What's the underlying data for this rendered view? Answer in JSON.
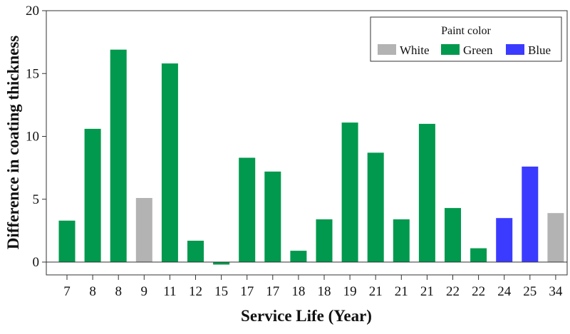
{
  "chart_data": {
    "type": "bar",
    "xlabel": "Service Life (Year)",
    "ylabel": "Difference in coating thickness",
    "ylim": [
      0,
      20
    ],
    "yticks": [
      0,
      5,
      10,
      15,
      20
    ],
    "grid": false,
    "legend": {
      "title": "Paint color",
      "placement": "top-right",
      "entries": [
        {
          "label": "White",
          "color": "#b3b3b3"
        },
        {
          "label": "Green",
          "color": "#00994d"
        },
        {
          "label": "Blue",
          "color": "#3b3bff"
        }
      ]
    },
    "categories": [
      "7",
      "8",
      "8",
      "9",
      "11",
      "12",
      "15",
      "17",
      "17",
      "18",
      "18",
      "19",
      "21",
      "21",
      "21",
      "22",
      "22",
      "24",
      "25",
      "34"
    ],
    "values": [
      3.3,
      10.6,
      16.9,
      5.1,
      15.8,
      1.7,
      -0.2,
      8.3,
      7.2,
      0.9,
      3.4,
      11.1,
      8.7,
      3.4,
      11.0,
      4.3,
      1.1,
      3.5,
      7.6,
      3.9
    ],
    "colors": [
      "Green",
      "Green",
      "Green",
      "White",
      "Green",
      "Green",
      "Green",
      "Green",
      "Green",
      "Green",
      "Green",
      "Green",
      "Green",
      "Green",
      "Green",
      "Green",
      "Green",
      "Blue",
      "Blue",
      "White"
    ]
  }
}
